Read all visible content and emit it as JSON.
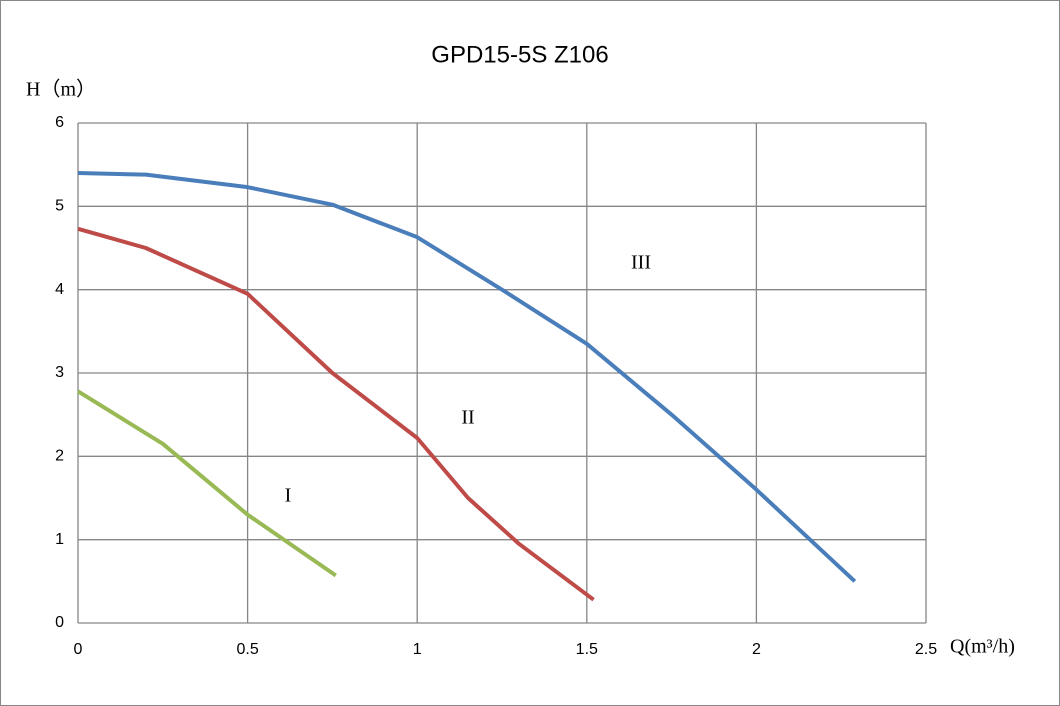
{
  "chart_data": {
    "type": "line",
    "title": "GPD15-5S  Z106",
    "y_label": "H（m）",
    "x_label": "Q(m³/h)",
    "xlim": [
      0,
      2.5
    ],
    "xticks": [
      0,
      0.5,
      1,
      1.5,
      2,
      2.5
    ],
    "ylim": [
      0,
      6
    ],
    "yticks": [
      0,
      1,
      2,
      3,
      4,
      5,
      6
    ],
    "grid": true,
    "series": [
      {
        "name": "III",
        "color": "#4a7ebb",
        "x": [
          0,
          0.2,
          0.5,
          0.75,
          1.0,
          1.25,
          1.5,
          1.75,
          2.0,
          2.29
        ],
        "values": [
          5.4,
          5.38,
          5.23,
          5.02,
          4.63,
          4.0,
          3.35,
          2.5,
          1.6,
          0.5
        ]
      },
      {
        "name": "II",
        "color": "#be4b48",
        "x": [
          0,
          0.2,
          0.5,
          0.75,
          1.0,
          1.15,
          1.3,
          1.52
        ],
        "values": [
          4.73,
          4.5,
          3.95,
          3.0,
          2.22,
          1.5,
          0.95,
          0.28
        ]
      },
      {
        "name": "I",
        "color": "#98b954",
        "x": [
          0,
          0.25,
          0.5,
          0.76
        ],
        "values": [
          2.78,
          2.15,
          1.3,
          0.57
        ]
      }
    ]
  }
}
